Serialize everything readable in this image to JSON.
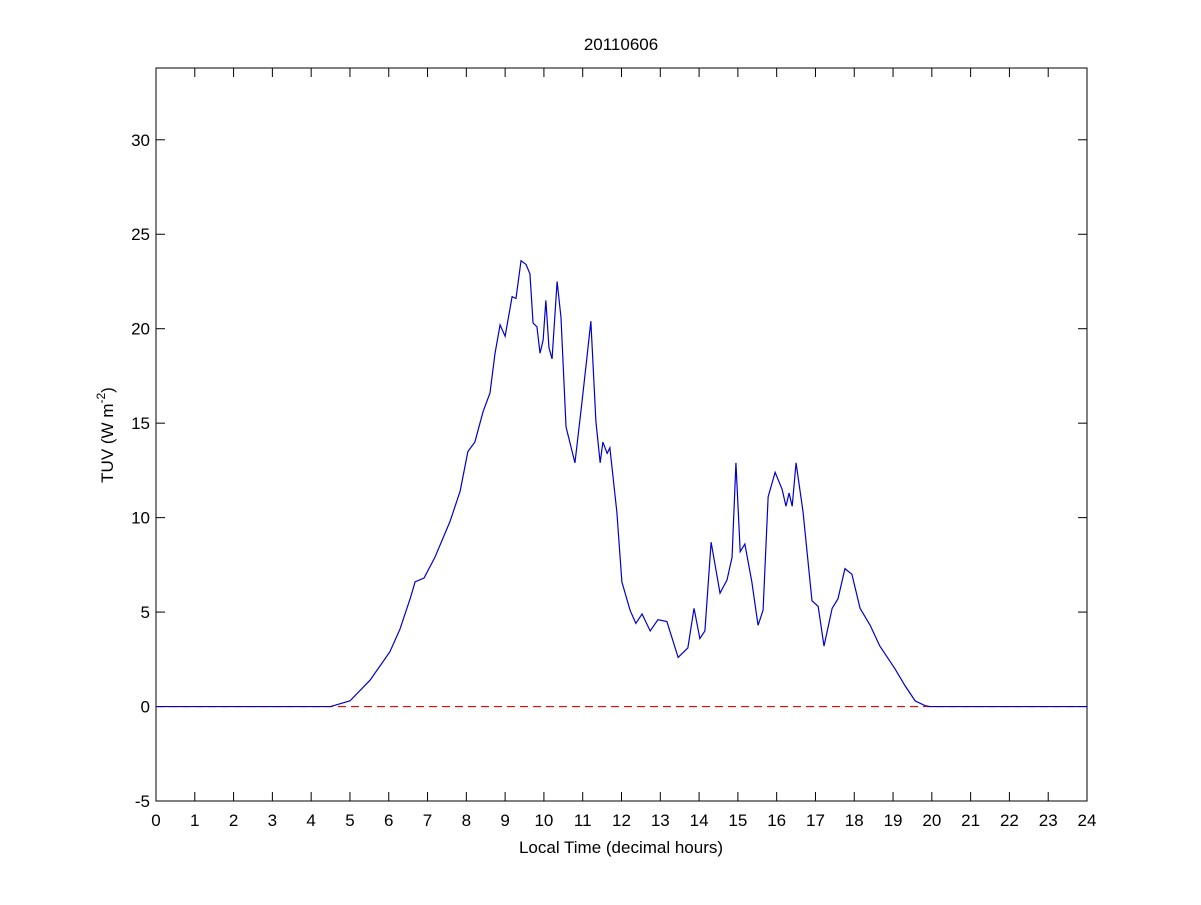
{
  "chart_data": {
    "type": "line",
    "title": "20110606",
    "xlabel": "Local Time (decimal hours)",
    "ylabel": {
      "text": "TUV (W m",
      "superscript": "-2",
      "suffix": ")"
    },
    "xlim": [
      0,
      24
    ],
    "ylim": [
      -5,
      33.8
    ],
    "xticks": [
      0,
      1,
      2,
      3,
      4,
      5,
      6,
      7,
      8,
      9,
      10,
      11,
      12,
      13,
      14,
      15,
      16,
      17,
      18,
      19,
      20,
      21,
      22,
      23,
      24
    ],
    "yticks": [
      -5,
      0,
      5,
      10,
      15,
      20,
      25,
      30
    ],
    "grid": false,
    "series": [
      {
        "name": "TUV",
        "color": "#0000cc",
        "style": "solid",
        "x": [
          0,
          4.5,
          5.0,
          5.52,
          6.03,
          6.29,
          6.55,
          6.68,
          6.91,
          7.19,
          7.58,
          7.84,
          8.04,
          8.22,
          8.43,
          8.61,
          8.74,
          8.87,
          9.0,
          9.18,
          9.28,
          9.41,
          9.54,
          9.64,
          9.72,
          9.82,
          9.9,
          9.98,
          10.05,
          10.13,
          10.21,
          10.34,
          10.44,
          10.57,
          10.8,
          10.98,
          11.11,
          11.21,
          11.34,
          11.45,
          11.52,
          11.63,
          11.7,
          11.88,
          12.01,
          12.22,
          12.37,
          12.53,
          12.74,
          12.94,
          13.17,
          13.46,
          13.71,
          13.87,
          14.02,
          14.15,
          14.31,
          14.54,
          14.72,
          14.85,
          14.95,
          15.06,
          15.18,
          15.36,
          15.52,
          15.65,
          15.78,
          15.96,
          16.14,
          16.24,
          16.32,
          16.4,
          16.5,
          16.68,
          16.91,
          17.07,
          17.22,
          17.43,
          17.58,
          17.76,
          17.94,
          18.15,
          18.41,
          18.66,
          19.05,
          19.31,
          19.57,
          19.82,
          19.95,
          24
        ],
        "values": [
          0,
          0,
          0.3,
          1.4,
          2.9,
          4.1,
          5.7,
          6.6,
          6.8,
          7.9,
          9.8,
          11.4,
          13.5,
          14.0,
          15.6,
          16.6,
          18.7,
          20.2,
          19.6,
          21.7,
          21.6,
          23.6,
          23.4,
          22.9,
          20.3,
          20.1,
          18.7,
          19.4,
          21.5,
          19.0,
          18.4,
          22.5,
          20.6,
          14.8,
          12.9,
          16.1,
          18.5,
          20.4,
          15.1,
          12.9,
          14.0,
          13.4,
          13.7,
          10.3,
          6.6,
          5.1,
          4.4,
          4.9,
          4.0,
          4.6,
          4.5,
          2.6,
          3.1,
          5.2,
          3.6,
          4.0,
          8.7,
          6.0,
          6.7,
          7.9,
          12.9,
          8.2,
          8.6,
          6.6,
          4.3,
          5.1,
          11.1,
          12.4,
          11.5,
          10.6,
          11.3,
          10.6,
          12.9,
          10.3,
          5.6,
          5.3,
          3.2,
          5.2,
          5.7,
          7.3,
          7.0,
          5.2,
          4.3,
          3.2,
          2.0,
          1.1,
          0.3,
          0.05,
          0,
          0
        ]
      },
      {
        "name": "zero",
        "color": "#ff0000",
        "style": "dashed",
        "x": [
          0,
          24
        ],
        "values": [
          0,
          0
        ]
      }
    ]
  }
}
